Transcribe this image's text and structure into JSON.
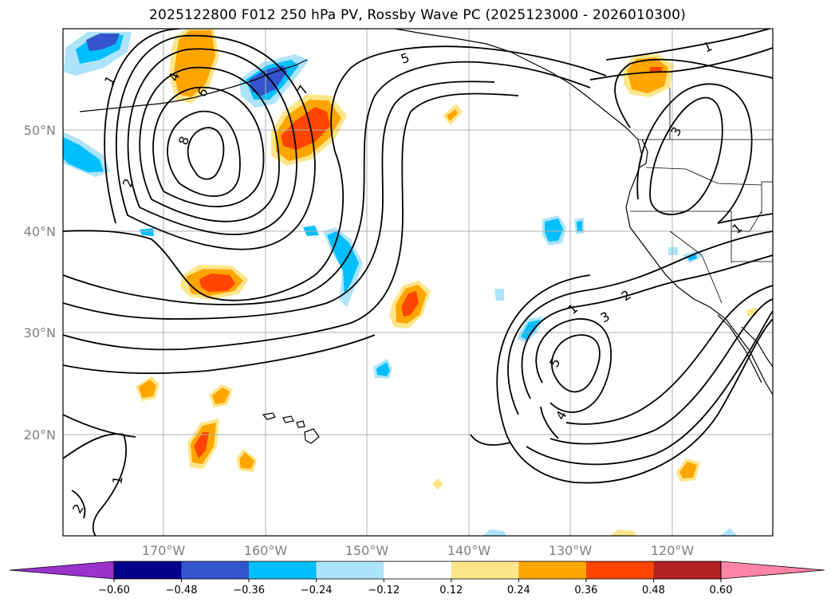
{
  "title": "2025122800 F012 250 hPa PV, Rossby Wave PC (2025123000 - 2026010300)",
  "map": {
    "lat_labels": [
      "50°N",
      "40°N",
      "30°N",
      "20°N"
    ],
    "lon_labels": [
      "170°W",
      "160°W",
      "150°W",
      "140°W",
      "130°W",
      "120°W"
    ],
    "pv_contour_labels": [
      "1",
      "2",
      "3",
      "4",
      "5",
      "6",
      "7",
      "8"
    ]
  },
  "colorbar": {
    "levels": [
      "−0.60",
      "−0.48",
      "−0.36",
      "−0.24",
      "−0.12",
      "0.12",
      "0.24",
      "0.36",
      "0.48",
      "0.60"
    ],
    "colors": [
      "#9933cc",
      "#00008b",
      "#3355cc",
      "#00bfff",
      "#aee4fa",
      "#ffffff",
      "#fde68a",
      "#ffa500",
      "#ff4500",
      "#b22222",
      "#ff85a8"
    ]
  },
  "colors": {
    "neg_light": "#aee4fa",
    "neg_mid": "#00bfff",
    "neg_dark": "#3355cc",
    "pos_light": "#fde68a",
    "pos_mid": "#ffa500",
    "pos_dark": "#ff4500",
    "contour": "#000000",
    "grid": "#b0b0b0",
    "tick_text": "#7f7f7f"
  }
}
